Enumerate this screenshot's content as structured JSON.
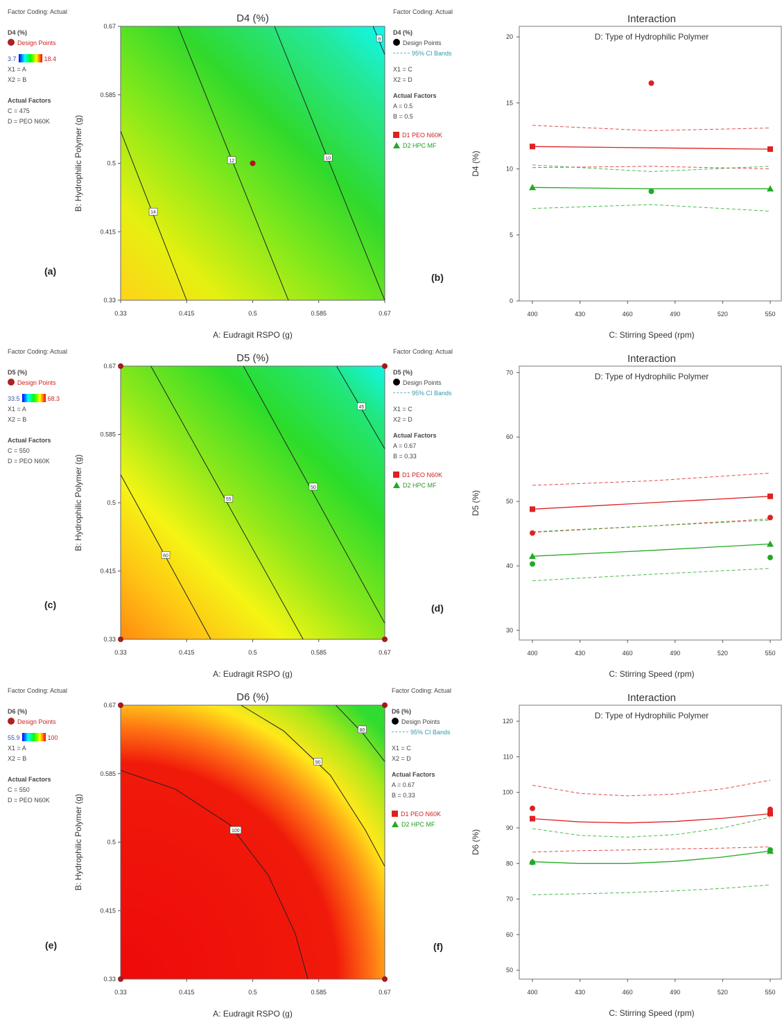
{
  "panels": [
    {
      "legend_left": {
        "coding": "Factor Coding: Actual",
        "resp": "D4 (%)",
        "design": "Design Points",
        "cmin": "3.7",
        "cmax": "18.4",
        "x1": "X1 = A",
        "x2": "X2 = B",
        "af": "Actual Factors",
        "f1": "C = 475",
        "f2": "D = PEO N60K"
      },
      "label_left": "(a)",
      "legend_right": {
        "coding": "Factor Coding: Actual",
        "resp": "D4 (%)",
        "design": "Design Points",
        "ci": "95% CI Bands",
        "x1": "X1 = C",
        "x2": "X2 = D",
        "af": "Actual Factors",
        "f1": "A = 0.5",
        "f2": "B = 0.5",
        "d1": "D1 PEO N60K",
        "d2": "D2 HPC MF"
      },
      "label_right": "(b)"
    },
    {
      "legend_left": {
        "coding": "Factor Coding: Actual",
        "resp": "D5 (%)",
        "design": "Design Points",
        "cmin": "33.5",
        "cmax": "68.3",
        "x1": "X1 = A",
        "x2": "X2 = B",
        "af": "Actual Factors",
        "f1": "C = 550",
        "f2": "D = PEO N60K"
      },
      "label_left": "(c)",
      "legend_right": {
        "coding": "Factor Coding: Actual",
        "resp": "D5 (%)",
        "design": "Design Points",
        "ci": "95% CI Bands",
        "x1": "X1 = C",
        "x2": "X2 = D",
        "af": "Actual Factors",
        "f1": "A = 0.67",
        "f2": "B = 0.33",
        "d1": "D1 PEO N60K",
        "d2": "D2 HPC MF"
      },
      "label_right": "(d)"
    },
    {
      "legend_left": {
        "coding": "Factor Coding: Actual",
        "resp": "D6 (%)",
        "design": "Design Points",
        "cmin": "55.9",
        "cmax": "100",
        "x1": "X1 = A",
        "x2": "X2 = B",
        "af": "Actual Factors",
        "f1": "C = 550",
        "f2": "D = PEO N60K"
      },
      "label_left": "(e)",
      "legend_right": {
        "coding": "Factor Coding: Actual",
        "resp": "D6 (%)",
        "design": "Design Points",
        "ci": "95% CI Bands",
        "x1": "X1 = C",
        "x2": "X2 = D",
        "af": "Actual Factors",
        "f1": "A = 0.67",
        "f2": "B = 0.33",
        "d1": "D1 PEO N60K",
        "d2": "D2 HPC MF"
      },
      "label_right": "(f)"
    }
  ],
  "chart_data": [
    {
      "type": "heatmap",
      "title": "D4 (%)",
      "xlabel": "A: Eudragit RSPO (g)",
      "ylabel": "B: Hydrophilic Polymer (g)",
      "x_ticks": [
        "0.33",
        "0.415",
        "0.5",
        "0.585",
        "0.67"
      ],
      "y_ticks": [
        "0.33",
        "0.415",
        "0.5",
        "0.585",
        "0.67"
      ],
      "xlim": [
        0.33,
        0.67
      ],
      "ylim": [
        0.33,
        0.67
      ],
      "colorbar": [
        3.7,
        18.4
      ],
      "contours": [
        {
          "label": "14",
          "points": [
            [
              0.33,
              0.54
            ],
            [
              0.415,
              0.33
            ]
          ],
          "label_at": [
            0.372,
            0.44
          ]
        },
        {
          "label": "12",
          "points": [
            [
              0.404,
              0.67
            ],
            [
              0.546,
              0.33
            ]
          ],
          "label_at": [
            0.473,
            0.504
          ]
        },
        {
          "label": "10",
          "points": [
            [
              0.528,
              0.67
            ],
            [
              0.67,
              0.33
            ]
          ],
          "label_at": [
            0.597,
            0.507
          ]
        },
        {
          "label": "8",
          "points": [
            [
              0.655,
              0.67
            ],
            [
              0.67,
              0.635
            ]
          ],
          "label_at": [
            0.663,
            0.655
          ]
        }
      ],
      "design_points": [
        [
          0.5,
          0.5
        ]
      ]
    },
    {
      "type": "line",
      "title": "Interaction",
      "subtitle": "D: Type of Hydrophilic Polymer",
      "xlabel": "C: Stirring Speed (rpm)",
      "ylabel": "D4 (%)",
      "x_ticks": [
        400,
        430,
        460,
        490,
        520,
        550
      ],
      "y_ticks": [
        0,
        5,
        10,
        15,
        20
      ],
      "xlim": [
        400,
        550
      ],
      "ylim": [
        0,
        20.8
      ],
      "series": [
        {
          "name": "D1 PEO N60K",
          "x": [
            400,
            475,
            550
          ],
          "y": [
            11.7,
            11.6,
            11.5
          ],
          "ci_low": [
            10.1,
            10.2,
            10.0
          ],
          "ci_high": [
            13.3,
            12.9,
            13.1
          ],
          "points": [
            [
              400,
              11.7
            ],
            [
              475,
              16.5
            ],
            [
              550,
              11.5
            ]
          ]
        },
        {
          "name": "D2 HPC MF",
          "x": [
            400,
            475,
            550
          ],
          "y": [
            8.6,
            8.5,
            8.5
          ],
          "ci_low": [
            7.0,
            7.3,
            6.8
          ],
          "ci_high": [
            10.3,
            9.8,
            10.2
          ],
          "points": [
            [
              400,
              8.6
            ],
            [
              475,
              8.3
            ],
            [
              550,
              8.5
            ]
          ]
        }
      ]
    },
    {
      "type": "heatmap",
      "title": "D5 (%)",
      "xlabel": "A: Eudragit RSPO (g)",
      "ylabel": "B: Hydrophilic Polymer (g)",
      "x_ticks": [
        "0.33",
        "0.415",
        "0.5",
        "0.585",
        "0.67"
      ],
      "y_ticks": [
        "0.33",
        "0.415",
        "0.5",
        "0.585",
        "0.67"
      ],
      "xlim": [
        0.33,
        0.67
      ],
      "ylim": [
        0.33,
        0.67
      ],
      "colorbar": [
        33.5,
        68.3
      ],
      "contours": [
        {
          "label": "60",
          "points": [
            [
              0.33,
              0.535
            ],
            [
              0.446,
              0.33
            ]
          ],
          "label_at": [
            0.388,
            0.435
          ]
        },
        {
          "label": "55",
          "points": [
            [
              0.369,
              0.67
            ],
            [
              0.565,
              0.33
            ]
          ],
          "label_at": [
            0.469,
            0.505
          ]
        },
        {
          "label": "50",
          "points": [
            [
              0.488,
              0.67
            ],
            [
              0.67,
              0.35
            ]
          ],
          "label_at": [
            0.578,
            0.52
          ]
        },
        {
          "label": "45",
          "points": [
            [
              0.608,
              0.67
            ],
            [
              0.67,
              0.567
            ]
          ],
          "label_at": [
            0.64,
            0.62
          ]
        }
      ],
      "design_points": [
        [
          0.33,
          0.67
        ],
        [
          0.67,
          0.67
        ],
        [
          0.33,
          0.33
        ],
        [
          0.67,
          0.33
        ]
      ]
    },
    {
      "type": "line",
      "title": "Interaction",
      "subtitle": "D: Type of Hydrophilic Polymer",
      "xlabel": "C: Stirring Speed (rpm)",
      "ylabel": "D5 (%)",
      "x_ticks": [
        400,
        430,
        460,
        490,
        520,
        550
      ],
      "y_ticks": [
        30,
        40,
        50,
        60,
        70
      ],
      "xlim": [
        400,
        550
      ],
      "ylim": [
        28.5,
        71
      ],
      "series": [
        {
          "name": "D1 PEO N60K",
          "x": [
            400,
            475,
            550
          ],
          "y": [
            48.8,
            49.8,
            50.8
          ],
          "ci_low": [
            45.2,
            46.2,
            47.3
          ],
          "ci_high": [
            52.5,
            53.2,
            54.4
          ],
          "points": [
            [
              400,
              48.8
            ],
            [
              550,
              50.8
            ],
            [
              400,
              45.1
            ],
            [
              550,
              47.5
            ]
          ]
        },
        {
          "name": "D2 HPC MF",
          "x": [
            400,
            475,
            550
          ],
          "y": [
            41.5,
            42.4,
            43.4
          ],
          "ci_low": [
            37.7,
            38.7,
            39.6
          ],
          "ci_high": [
            45.3,
            46.2,
            47.1
          ],
          "points": [
            [
              400,
              41.5
            ],
            [
              550,
              43.4
            ],
            [
              400,
              40.3
            ],
            [
              550,
              41.3
            ]
          ]
        }
      ]
    },
    {
      "type": "heatmap",
      "title": "D6 (%)",
      "xlabel": "A: Eudragit RSPO (g)",
      "ylabel": "B: Hydrophilic Polymer (g)",
      "x_ticks": [
        "0.33",
        "0.415",
        "0.5",
        "0.585",
        "0.67"
      ],
      "y_ticks": [
        "0.33",
        "0.415",
        "0.5",
        "0.585",
        "0.67"
      ],
      "xlim": [
        0.33,
        0.67
      ],
      "ylim": [
        0.33,
        0.67
      ],
      "colorbar": [
        55.9,
        100
      ],
      "contours": [
        {
          "label": "100",
          "points": [
            [
              0.33,
              0.589
            ],
            [
              0.4,
              0.566
            ],
            [
              0.47,
              0.522
            ],
            [
              0.52,
              0.459
            ],
            [
              0.555,
              0.386
            ],
            [
              0.571,
              0.33
            ]
          ],
          "label_at": [
            0.478,
            0.515
          ]
        },
        {
          "label": "90",
          "points": [
            [
              0.485,
              0.67
            ],
            [
              0.54,
              0.638
            ],
            [
              0.6,
              0.583
            ],
            [
              0.645,
              0.515
            ],
            [
              0.67,
              0.47
            ]
          ],
          "label_at": [
            0.584,
            0.6
          ]
        },
        {
          "label": "80",
          "points": [
            [
              0.607,
              0.67
            ],
            [
              0.642,
              0.635
            ],
            [
              0.67,
              0.6
            ]
          ],
          "label_at": [
            0.641,
            0.64
          ]
        }
      ],
      "design_points": [
        [
          0.33,
          0.67
        ],
        [
          0.67,
          0.67
        ],
        [
          0.33,
          0.33
        ],
        [
          0.67,
          0.33
        ]
      ]
    },
    {
      "type": "line",
      "title": "Interaction",
      "subtitle": "D: Type of Hydrophilic Polymer",
      "xlabel": "C: Stirring Speed (rpm)",
      "ylabel": "D6 (%)",
      "x_ticks": [
        400,
        430,
        460,
        490,
        520,
        550
      ],
      "y_ticks": [
        50,
        60,
        70,
        80,
        90,
        100,
        110,
        120
      ],
      "xlim": [
        400,
        550
      ],
      "ylim": [
        47.5,
        124.5
      ],
      "series": [
        {
          "name": "D1 PEO N60K",
          "x": [
            400,
            430,
            460,
            490,
            520,
            550
          ],
          "y": [
            92.6,
            91.7,
            91.4,
            91.8,
            92.7,
            94.0
          ],
          "ci_low": [
            83.2,
            83.6,
            83.8,
            84.1,
            84.3,
            84.7
          ],
          "ci_high": [
            102.0,
            99.7,
            99.0,
            99.5,
            101.0,
            103.4
          ],
          "points": [
            [
              400,
              92.6
            ],
            [
              550,
              94.0
            ],
            [
              400,
              95.5
            ],
            [
              550,
              95.2
            ]
          ]
        },
        {
          "name": "D2 HPC MF",
          "x": [
            400,
            430,
            460,
            490,
            520,
            550
          ],
          "y": [
            80.5,
            80.0,
            80.0,
            80.6,
            81.8,
            83.5
          ],
          "ci_low": [
            71.2,
            71.5,
            71.8,
            72.3,
            73.0,
            74.0
          ],
          "ci_high": [
            89.8,
            87.9,
            87.4,
            88.1,
            90.0,
            93.0
          ],
          "points": [
            [
              400,
              80.5
            ],
            [
              550,
              83.5
            ],
            [
              400,
              80.3
            ],
            [
              550,
              83.8
            ]
          ]
        }
      ]
    }
  ]
}
